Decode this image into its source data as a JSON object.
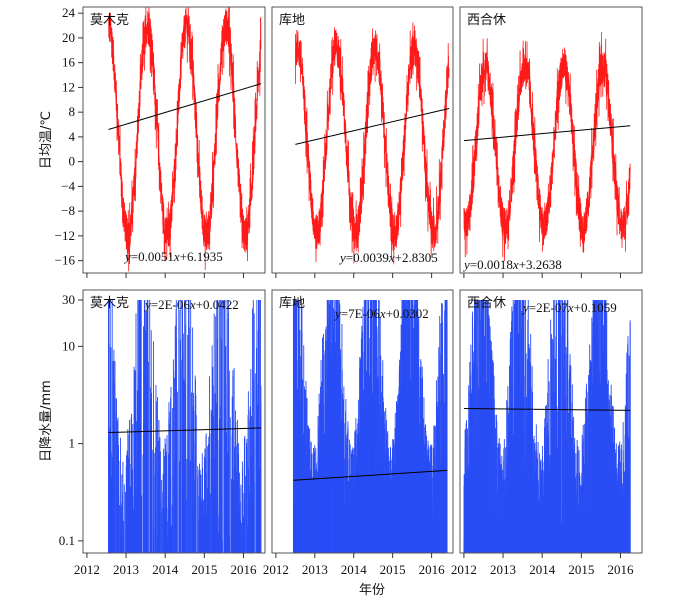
{
  "chart_data": [
    {
      "type": "line",
      "row": "temperature",
      "station": "莫木克",
      "ylabel": "日均温/℃",
      "ylim": [
        -18,
        25
      ],
      "yticks": [
        -16,
        -12,
        -8,
        -4,
        0,
        4,
        8,
        12,
        16,
        20,
        24
      ],
      "xlim": [
        2011.9,
        2016.55
      ],
      "xticks": [
        2012,
        2013,
        2014,
        2015,
        2016
      ],
      "x_start": 2012.55,
      "x_end": 2016.45,
      "series_color": "#ff1a1a",
      "seasonal_model": {
        "mean": 5,
        "amplitude": 17,
        "peak_phase": 0.55,
        "noise": 3
      },
      "trend": {
        "equation": "y=0.0051x+6.1935",
        "start": 5.2,
        "end": 12.6,
        "color": "#000000"
      }
    },
    {
      "type": "line",
      "row": "temperature",
      "station": "库地",
      "ylim": [
        -18,
        25
      ],
      "xlim": [
        2011.9,
        2016.55
      ],
      "xticks": [
        2012,
        2013,
        2014,
        2015,
        2016
      ],
      "x_start": 2012.5,
      "x_end": 2016.45,
      "series_color": "#ff1a1a",
      "seasonal_model": {
        "mean": 3.5,
        "amplitude": 15,
        "peak_phase": 0.55,
        "noise": 3
      },
      "trend": {
        "equation": "y=0.0039x+2.8305",
        "start": 2.8,
        "end": 8.6,
        "color": "#000000"
      }
    },
    {
      "type": "line",
      "row": "temperature",
      "station": "西合休",
      "ylim": [
        -18,
        25
      ],
      "xlim": [
        2011.9,
        2016.55
      ],
      "xticks": [
        2012,
        2013,
        2014,
        2015,
        2016
      ],
      "x_start": 2012.0,
      "x_end": 2016.25,
      "series_color": "#ff1a1a",
      "seasonal_model": {
        "mean": 2.5,
        "amplitude": 13,
        "peak_phase": 0.55,
        "noise": 3
      },
      "trend": {
        "equation": "y=0.0018x+3.2638",
        "start": 3.4,
        "end": 5.8,
        "color": "#000000"
      }
    },
    {
      "type": "bar",
      "row": "precipitation",
      "station": "莫木克",
      "ylabel": "日降水量/mm",
      "yscale": "log",
      "ylim": [
        0.075,
        38
      ],
      "yticks": [
        0.1,
        1,
        10,
        30
      ],
      "ytick_labels": [
        "0.1",
        "1",
        "10",
        "30"
      ],
      "xlim": [
        2011.9,
        2016.55
      ],
      "xticks": [
        2012,
        2013,
        2014,
        2015,
        2016
      ],
      "xtick_labels": [
        "2012",
        "2013",
        "2014",
        "2015",
        "2016"
      ],
      "x_start": 2012.55,
      "x_end": 2016.45,
      "bar_color": "#2a4df5",
      "density": 0.35,
      "trend": {
        "equation": "y=2E-06x+0.0422",
        "start": 1.3,
        "end": 1.45,
        "color": "#000000"
      }
    },
    {
      "type": "bar",
      "row": "precipitation",
      "station": "库地",
      "yscale": "log",
      "ylim": [
        0.075,
        38
      ],
      "xlim": [
        2011.9,
        2016.55
      ],
      "xticks": [
        2012,
        2013,
        2014,
        2015,
        2016
      ],
      "xtick_labels": [
        "2012",
        "2013",
        "2014",
        "2015",
        "2016"
      ],
      "x_start": 2012.45,
      "x_end": 2016.4,
      "bar_color": "#2a4df5",
      "density": 0.9,
      "trend": {
        "equation": "y=7E-06x+0.0302",
        "start": 0.42,
        "end": 0.53,
        "color": "#000000"
      }
    },
    {
      "type": "bar",
      "row": "precipitation",
      "station": "西合休",
      "yscale": "log",
      "ylim": [
        0.075,
        38
      ],
      "xlim": [
        2011.9,
        2016.55
      ],
      "xticks": [
        2012,
        2013,
        2014,
        2015,
        2016
      ],
      "xtick_labels": [
        "2012",
        "2013",
        "2014",
        "2015",
        "2016"
      ],
      "x_start": 2012.0,
      "x_end": 2016.25,
      "bar_color": "#2a4df5",
      "density": 0.7,
      "trend": {
        "equation": "y=2E-07x+0.1059",
        "start": 2.3,
        "end": 2.2,
        "color": "#000000"
      }
    }
  ],
  "xlabel": "年份"
}
